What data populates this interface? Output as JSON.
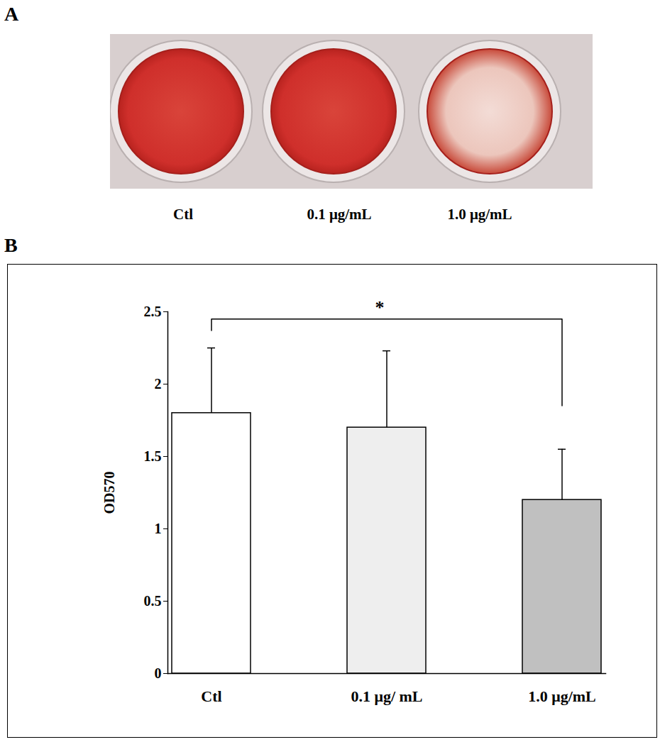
{
  "panel_a": {
    "label": "A",
    "wells": [
      "Ctl",
      "0.1 μg/mL",
      "1.0 μg/mL"
    ]
  },
  "chart_data": {
    "type": "bar",
    "panel_label": "B",
    "categories": [
      "Ctl",
      "0.1 μg/ mL",
      "1.0 μg/mL"
    ],
    "values": [
      1.8,
      1.7,
      1.2
    ],
    "errors": [
      0.45,
      0.53,
      0.35
    ],
    "colors": [
      "#ffffff",
      "#eeeeee",
      "#c0c0c0"
    ],
    "ylabel": "OD570",
    "ylim": [
      0,
      2.5
    ],
    "yticks": [
      0,
      0.5,
      1,
      1.5,
      2,
      2.5
    ],
    "annotations": [
      {
        "text": "*",
        "between": [
          "Ctl",
          "1.0 μg/mL"
        ],
        "y": 2.45
      }
    ]
  }
}
